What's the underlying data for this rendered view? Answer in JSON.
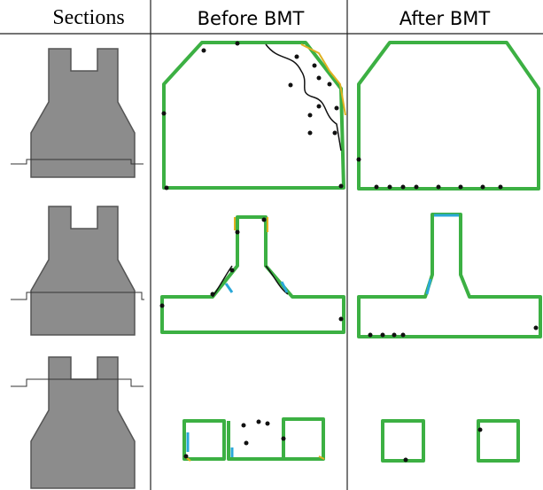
{
  "table": {
    "headers": [
      "Sections",
      "Before BMT",
      "After BMT"
    ]
  }
}
